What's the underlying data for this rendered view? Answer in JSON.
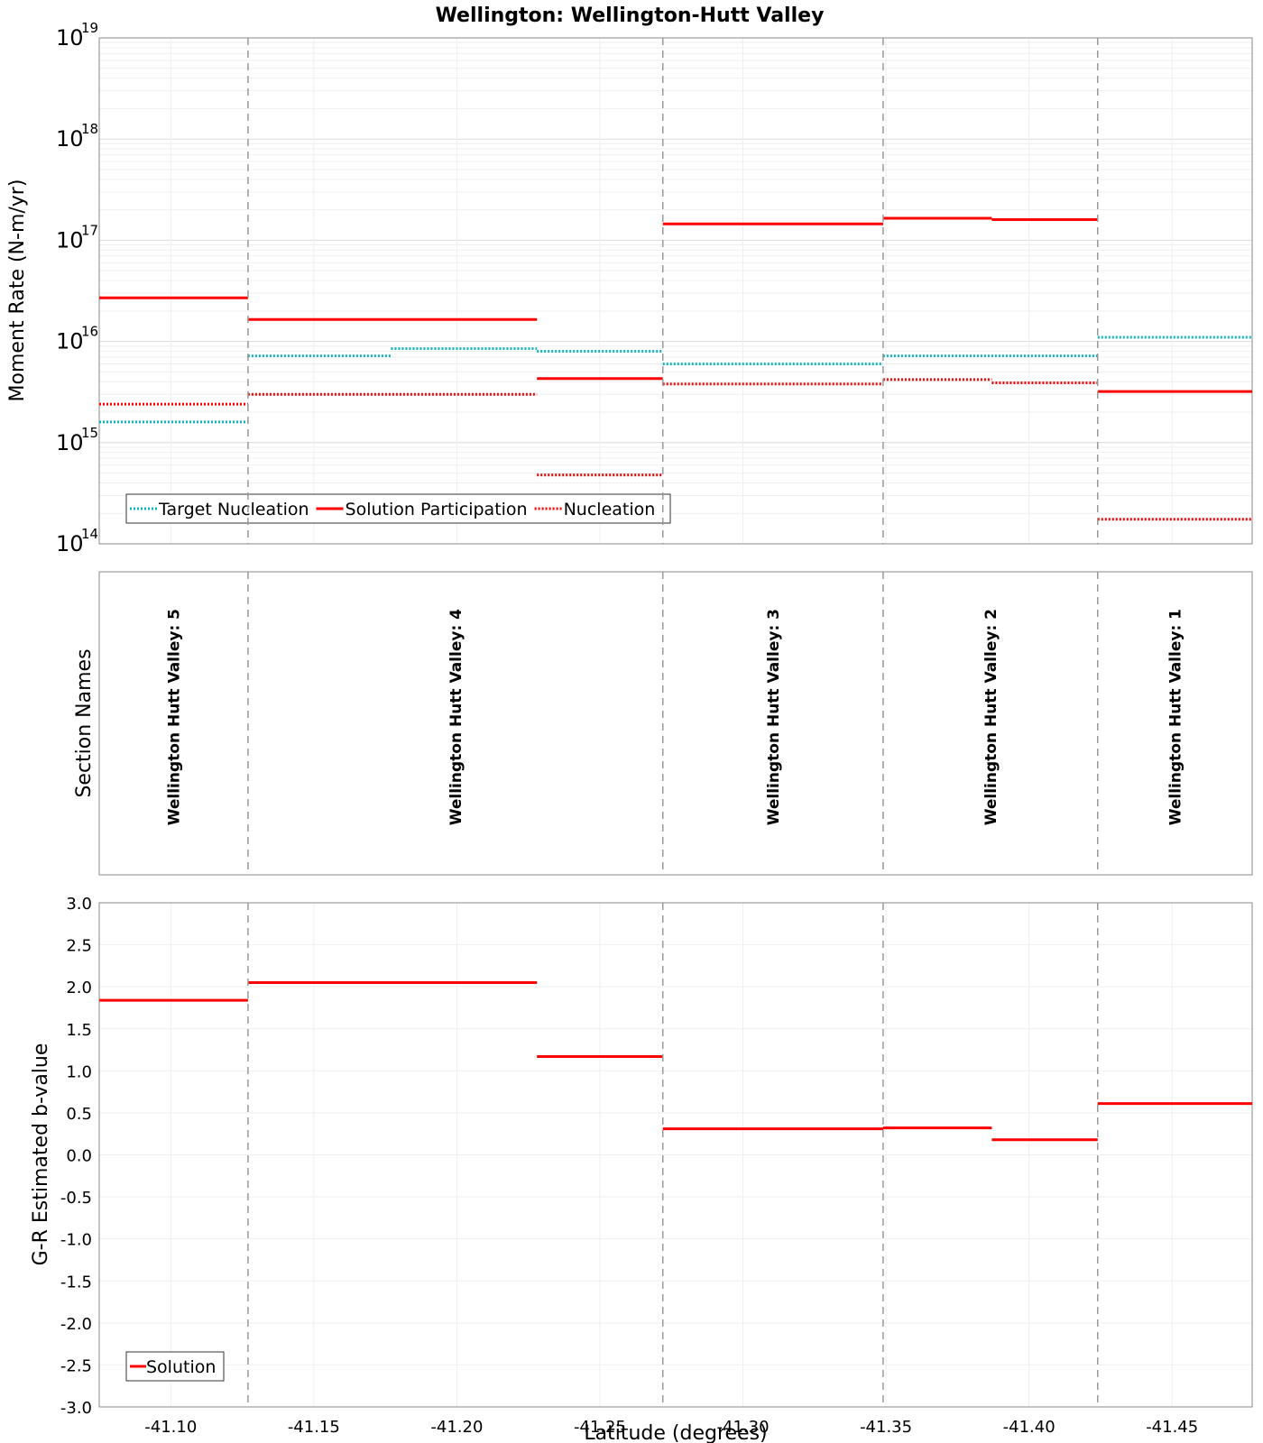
{
  "chart_data": [
    {
      "type": "line",
      "panel": "moment-rate",
      "title": "Wellington: Wellington-Hutt Valley",
      "ylabel": "Moment Rate (N-m/yr)",
      "yscale": "log",
      "ylim_exponents": [
        14,
        19
      ],
      "ytick_base": "10",
      "ytick_exponents": [
        "14",
        "15",
        "16",
        "17",
        "18",
        "19"
      ],
      "xlim": [
        -41.075,
        -41.478
      ],
      "grid": true,
      "legend_position": "bottom-left",
      "series": [
        {
          "name": "Target Nucleation",
          "color": "#11b5c0",
          "style": "dotted",
          "segments": [
            {
              "x0": -41.075,
              "x1": -41.127,
              "y": 1600000000000000.0
            },
            {
              "x0": -41.127,
              "x1": -41.177,
              "y": 7200000000000000.0
            },
            {
              "x0": -41.177,
              "x1": -41.228,
              "y": 8500000000000000.0
            },
            {
              "x0": -41.228,
              "x1": -41.272,
              "y": 8000000000000000.0
            },
            {
              "x0": -41.272,
              "x1": -41.349,
              "y": 6000000000000000.0
            },
            {
              "x0": -41.349,
              "x1": -41.424,
              "y": 7200000000000000.0
            },
            {
              "x0": -41.424,
              "x1": -41.478,
              "y": 1.1e+16
            }
          ]
        },
        {
          "name": "Solution Participation",
          "color": "#ff0000",
          "style": "solid",
          "segments": [
            {
              "x0": -41.075,
              "x1": -41.127,
              "y": 2.7e+16
            },
            {
              "x0": -41.127,
              "x1": -41.228,
              "y": 1.65e+16
            },
            {
              "x0": -41.228,
              "x1": -41.272,
              "y": 4300000000000000.0
            },
            {
              "x0": -41.272,
              "x1": -41.349,
              "y": 1.45e+17
            },
            {
              "x0": -41.349,
              "x1": -41.387,
              "y": 1.65e+17
            },
            {
              "x0": -41.387,
              "x1": -41.424,
              "y": 1.6e+17
            },
            {
              "x0": -41.424,
              "x1": -41.478,
              "y": 3200000000000000.0
            }
          ]
        },
        {
          "name": "Nucleation",
          "color": "#ff0000",
          "style": "dotted",
          "segments": [
            {
              "x0": -41.075,
              "x1": -41.127,
              "y": 2400000000000000.0
            },
            {
              "x0": -41.127,
              "x1": -41.228,
              "y": 3000000000000000.0
            },
            {
              "x0": -41.228,
              "x1": -41.272,
              "y": 480000000000000.0
            },
            {
              "x0": -41.272,
              "x1": -41.349,
              "y": 3800000000000000.0
            },
            {
              "x0": -41.349,
              "x1": -41.387,
              "y": 4200000000000000.0
            },
            {
              "x0": -41.387,
              "x1": -41.424,
              "y": 3900000000000000.0
            },
            {
              "x0": -41.424,
              "x1": -41.478,
              "y": 175000000000000.0
            }
          ]
        }
      ]
    },
    {
      "type": "table",
      "panel": "section-names",
      "ylabel": "Section Names",
      "sections": [
        {
          "name": "Wellington Hutt Valley: 5",
          "x0": -41.075,
          "x1": -41.127
        },
        {
          "name": "Wellington Hutt Valley: 4",
          "x0": -41.127,
          "x1": -41.272
        },
        {
          "name": "Wellington Hutt Valley: 3",
          "x0": -41.272,
          "x1": -41.349
        },
        {
          "name": "Wellington Hutt Valley: 2",
          "x0": -41.349,
          "x1": -41.424
        },
        {
          "name": "Wellington Hutt Valley: 1",
          "x0": -41.424,
          "x1": -41.478
        }
      ]
    },
    {
      "type": "line",
      "panel": "b-value",
      "ylabel": "G-R Estimated b-value",
      "xlabel": "Latitude (degrees)",
      "ylim": [
        -3.0,
        3.0
      ],
      "yticks": [
        "3.0",
        "2.5",
        "2.0",
        "1.5",
        "1.0",
        "0.5",
        "0.0",
        "-0.5",
        "-1.0",
        "-1.5",
        "-2.0",
        "-2.5",
        "-3.0"
      ],
      "xlim": [
        -41.075,
        -41.478
      ],
      "xticks": [
        "-41.10",
        "-41.15",
        "-41.20",
        "-41.25",
        "-41.30",
        "-41.35",
        "-41.40",
        "-41.45"
      ],
      "grid": true,
      "legend_position": "bottom-left",
      "series": [
        {
          "name": "Solution",
          "color": "#ff0000",
          "style": "solid",
          "segments": [
            {
              "x0": -41.075,
              "x1": -41.127,
              "y": 1.84
            },
            {
              "x0": -41.127,
              "x1": -41.228,
              "y": 2.05
            },
            {
              "x0": -41.228,
              "x1": -41.272,
              "y": 1.17
            },
            {
              "x0": -41.272,
              "x1": -41.349,
              "y": 0.31
            },
            {
              "x0": -41.349,
              "x1": -41.387,
              "y": 0.32
            },
            {
              "x0": -41.387,
              "x1": -41.424,
              "y": 0.18
            },
            {
              "x0": -41.424,
              "x1": -41.478,
              "y": 0.61
            }
          ]
        }
      ]
    }
  ],
  "section_boundaries": [
    -41.127,
    -41.272,
    -41.349,
    -41.424
  ]
}
